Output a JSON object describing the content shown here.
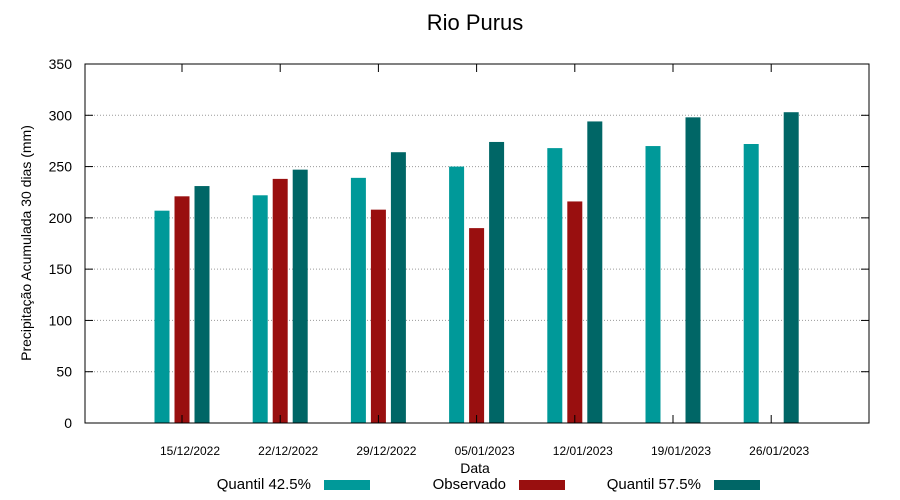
{
  "chart_data": {
    "type": "bar",
    "title": "Rio Purus",
    "xlabel": "Data",
    "ylabel": "Precipitação Acumulada 30 dias (mm)",
    "ylim": [
      0,
      350
    ],
    "yticks": [
      0,
      50,
      100,
      150,
      200,
      250,
      300,
      350
    ],
    "grid": true,
    "legend_position": "bottom",
    "categories": [
      "15/12/2022",
      "22/12/2022",
      "29/12/2022",
      "05/01/2023",
      "12/01/2023",
      "19/01/2023",
      "26/01/2023"
    ],
    "series": [
      {
        "name": "Quantil 42.5%",
        "color": "#009999",
        "values": [
          207,
          222,
          239,
          250,
          268,
          270,
          272
        ]
      },
      {
        "name": "Observado",
        "color": "#990f0f",
        "values": [
          221,
          238,
          208,
          190,
          216,
          null,
          null
        ]
      },
      {
        "name": "Quantil 57.5%",
        "color": "#006666",
        "values": [
          231,
          247,
          264,
          274,
          294,
          298,
          303
        ]
      }
    ]
  }
}
